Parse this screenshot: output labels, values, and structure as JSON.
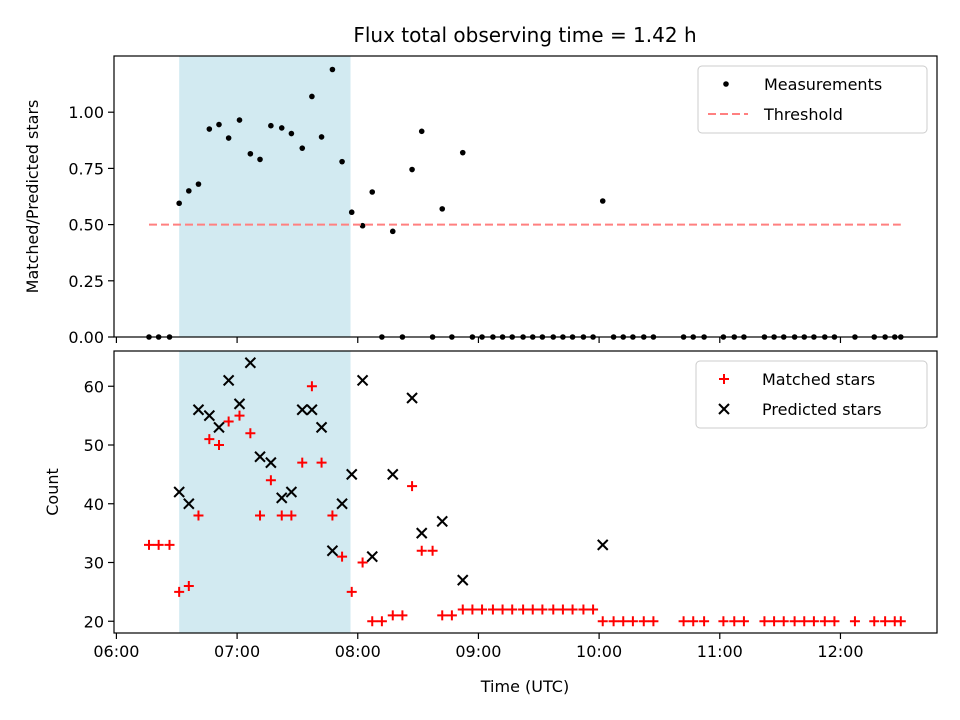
{
  "chart_data": {
    "title": "Flux total observing time = 1.42 h",
    "xlabel": "Time (UTC)",
    "x_unit": "hour of day (UTC)",
    "x_tick_labels": [
      "06:00",
      "07:00",
      "08:00",
      "09:00",
      "10:00",
      "11:00",
      "12:00"
    ],
    "x_ticks": [
      6,
      7,
      8,
      9,
      10,
      11,
      12
    ],
    "xlim": [
      5.98,
      12.8
    ],
    "highlight_span": {
      "x_start": 6.52,
      "x_end": 7.94,
      "color": "#add8e6"
    },
    "panels": [
      {
        "type": "scatter",
        "ylabel": "Matched/Predicted stars",
        "ylim": [
          0,
          1.25
        ],
        "y_ticks": [
          0,
          0.25,
          0.5,
          0.75,
          1.0
        ],
        "y_tick_labels": [
          "0.00",
          "0.25",
          "0.50",
          "0.75",
          "1.00"
        ],
        "legend_position": "top-right",
        "series": [
          {
            "name": "Measurements",
            "type": "scatter",
            "marker": "dot",
            "color": "#000000",
            "points": [
              [
                6.27,
                0
              ],
              [
                6.35,
                0
              ],
              [
                6.44,
                0
              ],
              [
                6.52,
                0.595
              ],
              [
                6.6,
                0.65
              ],
              [
                6.68,
                0.68
              ],
              [
                6.77,
                0.925
              ],
              [
                6.85,
                0.945
              ],
              [
                6.93,
                0.885
              ],
              [
                7.02,
                0.965
              ],
              [
                7.11,
                0.815
              ],
              [
                7.19,
                0.79
              ],
              [
                7.28,
                0.94
              ],
              [
                7.37,
                0.93
              ],
              [
                7.45,
                0.905
              ],
              [
                7.54,
                0.84
              ],
              [
                7.62,
                1.07
              ],
              [
                7.7,
                0.89
              ],
              [
                7.79,
                1.19
              ],
              [
                7.87,
                0.78
              ],
              [
                7.95,
                0.555
              ],
              [
                8.04,
                0.495
              ],
              [
                8.12,
                0.645
              ],
              [
                8.2,
                0
              ],
              [
                8.29,
                0.47
              ],
              [
                8.37,
                0
              ],
              [
                8.45,
                0.745
              ],
              [
                8.53,
                0.915
              ],
              [
                8.62,
                0
              ],
              [
                8.7,
                0.57
              ],
              [
                8.78,
                0
              ],
              [
                8.87,
                0.82
              ],
              [
                8.95,
                0
              ],
              [
                9.03,
                0
              ],
              [
                9.12,
                0
              ],
              [
                9.2,
                0
              ],
              [
                9.28,
                0
              ],
              [
                9.37,
                0
              ],
              [
                9.45,
                0
              ],
              [
                9.53,
                0
              ],
              [
                9.62,
                0
              ],
              [
                9.7,
                0
              ],
              [
                9.78,
                0
              ],
              [
                9.87,
                0
              ],
              [
                9.95,
                0
              ],
              [
                10.03,
                0.605
              ],
              [
                10.12,
                0
              ],
              [
                10.2,
                0
              ],
              [
                10.28,
                0
              ],
              [
                10.37,
                0
              ],
              [
                10.45,
                0
              ],
              [
                10.7,
                0
              ],
              [
                10.78,
                0
              ],
              [
                10.87,
                0
              ],
              [
                11.03,
                0
              ],
              [
                11.12,
                0
              ],
              [
                11.2,
                0
              ],
              [
                11.37,
                0
              ],
              [
                11.45,
                0
              ],
              [
                11.53,
                0
              ],
              [
                11.62,
                0
              ],
              [
                11.7,
                0
              ],
              [
                11.78,
                0
              ],
              [
                11.87,
                0
              ],
              [
                11.95,
                0
              ],
              [
                12.12,
                0
              ],
              [
                12.28,
                0
              ],
              [
                12.37,
                0
              ],
              [
                12.45,
                0
              ],
              [
                12.5,
                0
              ]
            ]
          },
          {
            "name": "Threshold",
            "type": "line",
            "style": "dashed",
            "color": "#ff8080",
            "x": [
              6.27,
              12.5
            ],
            "y": [
              0.5,
              0.5
            ]
          }
        ]
      },
      {
        "type": "scatter",
        "ylabel": "Count",
        "ylim": [
          18,
          66
        ],
        "y_ticks": [
          20,
          30,
          40,
          50,
          60
        ],
        "y_tick_labels": [
          "20",
          "30",
          "40",
          "50",
          "60"
        ],
        "legend_position": "top-right",
        "series": [
          {
            "name": "Matched stars",
            "type": "scatter",
            "marker": "plus",
            "color": "#ff0000",
            "points": [
              [
                6.27,
                33
              ],
              [
                6.35,
                33
              ],
              [
                6.44,
                33
              ],
              [
                6.52,
                25
              ],
              [
                6.6,
                26
              ],
              [
                6.68,
                38
              ],
              [
                6.77,
                51
              ],
              [
                6.85,
                50
              ],
              [
                6.93,
                54
              ],
              [
                7.02,
                55
              ],
              [
                7.11,
                52
              ],
              [
                7.19,
                38
              ],
              [
                7.28,
                44
              ],
              [
                7.37,
                38
              ],
              [
                7.45,
                38
              ],
              [
                7.54,
                47
              ],
              [
                7.62,
                60
              ],
              [
                7.7,
                47
              ],
              [
                7.79,
                38
              ],
              [
                7.87,
                31
              ],
              [
                7.95,
                25
              ],
              [
                8.04,
                30
              ],
              [
                8.12,
                20
              ],
              [
                8.2,
                20
              ],
              [
                8.29,
                21
              ],
              [
                8.37,
                21
              ],
              [
                8.45,
                43
              ],
              [
                8.53,
                32
              ],
              [
                8.62,
                32
              ],
              [
                8.7,
                21
              ],
              [
                8.78,
                21
              ],
              [
                8.87,
                22
              ],
              [
                8.95,
                22
              ],
              [
                9.03,
                22
              ],
              [
                9.12,
                22
              ],
              [
                9.2,
                22
              ],
              [
                9.28,
                22
              ],
              [
                9.37,
                22
              ],
              [
                9.45,
                22
              ],
              [
                9.53,
                22
              ],
              [
                9.62,
                22
              ],
              [
                9.7,
                22
              ],
              [
                9.78,
                22
              ],
              [
                9.87,
                22
              ],
              [
                9.95,
                22
              ],
              [
                10.03,
                20
              ],
              [
                10.12,
                20
              ],
              [
                10.2,
                20
              ],
              [
                10.28,
                20
              ],
              [
                10.37,
                20
              ],
              [
                10.45,
                20
              ],
              [
                10.7,
                20
              ],
              [
                10.78,
                20
              ],
              [
                10.87,
                20
              ],
              [
                11.03,
                20
              ],
              [
                11.12,
                20
              ],
              [
                11.2,
                20
              ],
              [
                11.37,
                20
              ],
              [
                11.45,
                20
              ],
              [
                11.53,
                20
              ],
              [
                11.62,
                20
              ],
              [
                11.7,
                20
              ],
              [
                11.78,
                20
              ],
              [
                11.87,
                20
              ],
              [
                11.95,
                20
              ],
              [
                12.12,
                20
              ],
              [
                12.28,
                20
              ],
              [
                12.37,
                20
              ],
              [
                12.45,
                20
              ],
              [
                12.5,
                20
              ]
            ]
          },
          {
            "name": "Predicted stars",
            "type": "scatter",
            "marker": "x",
            "color": "#000000",
            "points": [
              [
                6.52,
                42
              ],
              [
                6.6,
                40
              ],
              [
                6.68,
                56
              ],
              [
                6.77,
                55
              ],
              [
                6.85,
                53
              ],
              [
                6.93,
                61
              ],
              [
                7.02,
                57
              ],
              [
                7.11,
                64
              ],
              [
                7.19,
                48
              ],
              [
                7.28,
                47
              ],
              [
                7.37,
                41
              ],
              [
                7.45,
                42
              ],
              [
                7.54,
                56
              ],
              [
                7.62,
                56
              ],
              [
                7.7,
                53
              ],
              [
                7.79,
                32
              ],
              [
                7.87,
                40
              ],
              [
                7.95,
                45
              ],
              [
                8.04,
                61
              ],
              [
                8.12,
                31
              ],
              [
                8.29,
                45
              ],
              [
                8.45,
                58
              ],
              [
                8.53,
                35
              ],
              [
                8.7,
                37
              ],
              [
                8.87,
                27
              ],
              [
                10.03,
                33
              ]
            ]
          }
        ]
      }
    ]
  }
}
